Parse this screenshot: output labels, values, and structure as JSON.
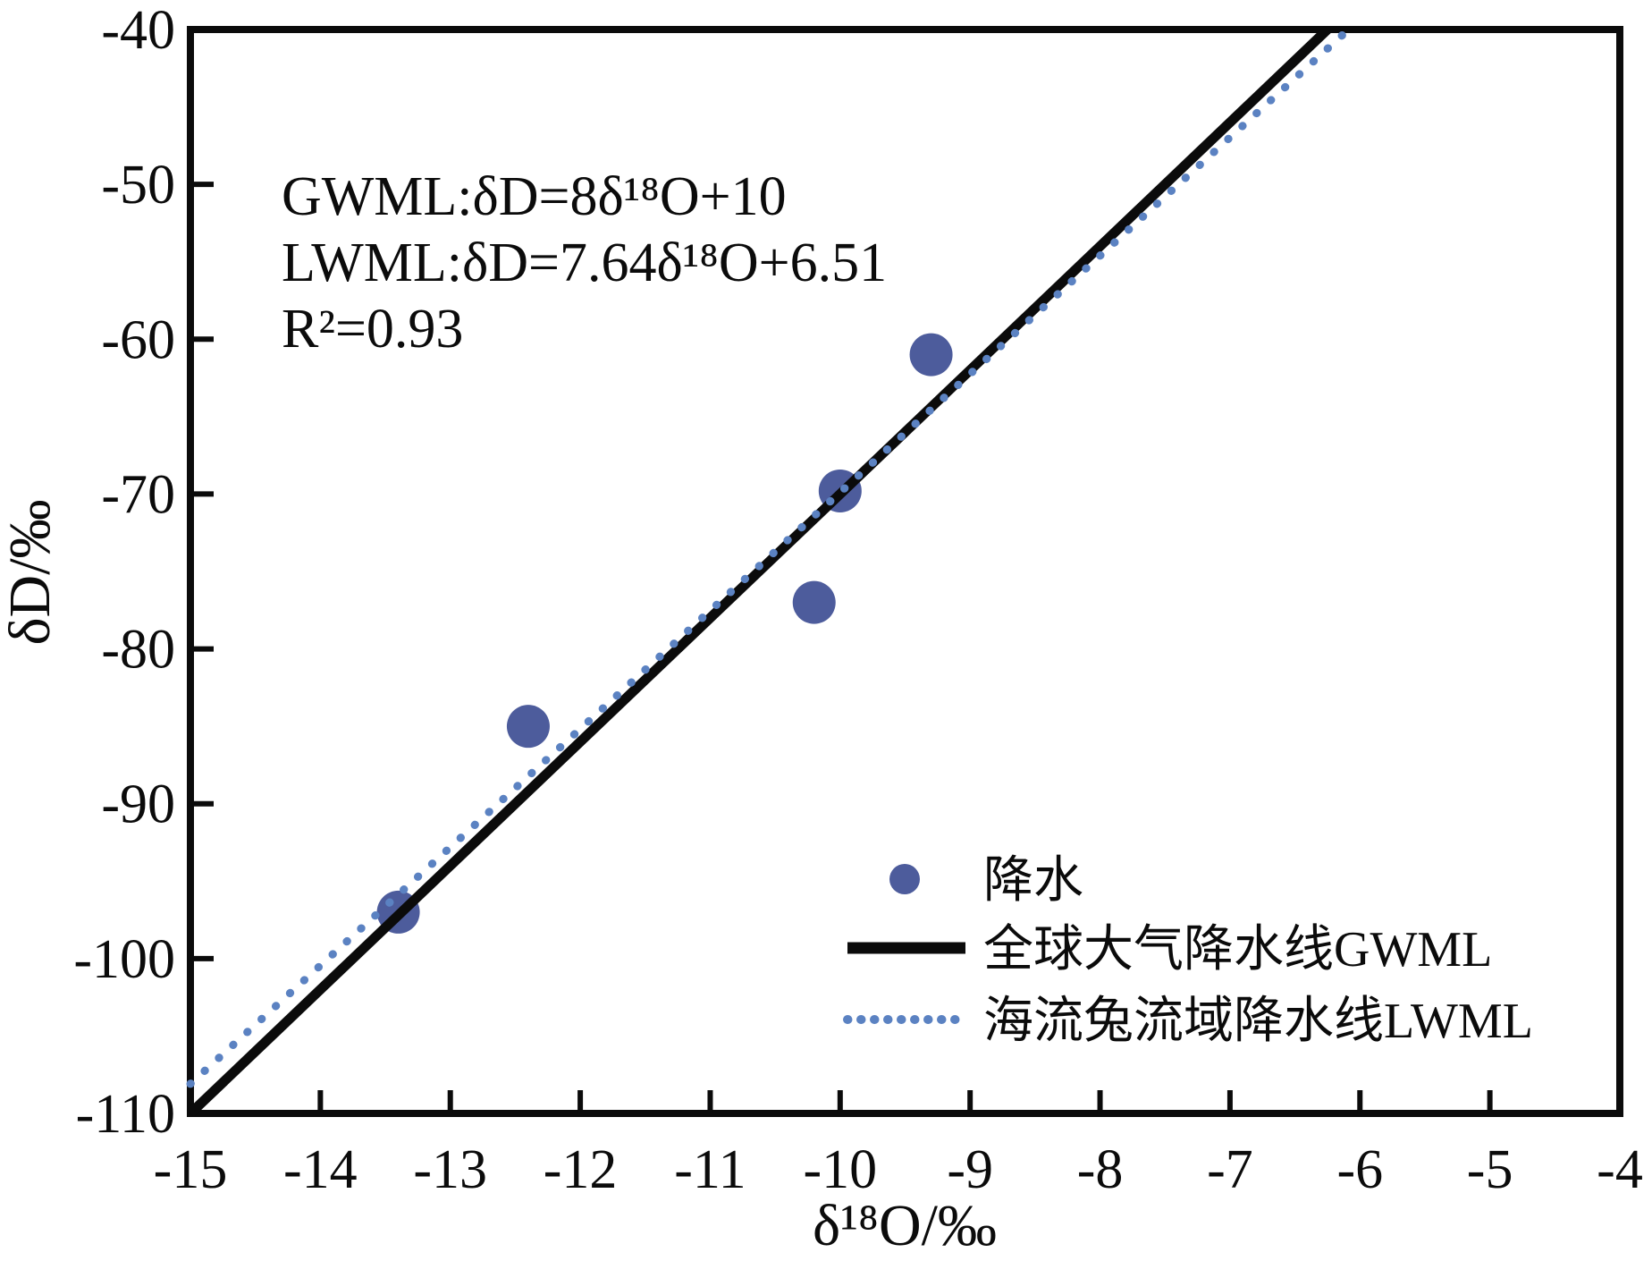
{
  "chart_data": {
    "type": "scatter",
    "title": "",
    "xlabel": "δ¹⁸O/‰",
    "ylabel": "δD/‰",
    "xlim": [
      -15,
      -4
    ],
    "ylim": [
      -110,
      -40
    ],
    "xticks": [
      -15,
      -14,
      -13,
      -12,
      -11,
      -10,
      -9,
      -8,
      -7,
      -6,
      -5,
      -4
    ],
    "yticks": [
      -110,
      -100,
      -90,
      -80,
      -70,
      -60,
      -50,
      -40
    ],
    "grid": false,
    "legend_position": "lower right",
    "series": [
      {
        "name": "降水",
        "type": "scatter",
        "color": "#4d5c9c",
        "marker": "circle",
        "points": [
          [
            -9.3,
            -61.0
          ],
          [
            -10.0,
            -69.8
          ],
          [
            -10.2,
            -77.0
          ],
          [
            -12.4,
            -85.0
          ],
          [
            -13.4,
            -97.0
          ]
        ]
      },
      {
        "name": "全球大气降水线GWML",
        "type": "line",
        "style": "solid",
        "color": "#0b0b0b",
        "slope": 8,
        "intercept": 10,
        "equation": "δD=8δ¹⁸O+10"
      },
      {
        "name": "海流兔流域降水线LWML",
        "type": "line",
        "style": "dotted",
        "color": "#5b82c2",
        "slope": 7.64,
        "intercept": 6.51,
        "equation": "δD=7.64δ¹⁸O+6.51"
      }
    ],
    "annotations": [
      "GWML:δD=8δ¹⁸O+10",
      "LWML:δD=7.64δ¹⁸O+6.51",
      "R²=0.93"
    ],
    "r_squared": "0.93"
  }
}
